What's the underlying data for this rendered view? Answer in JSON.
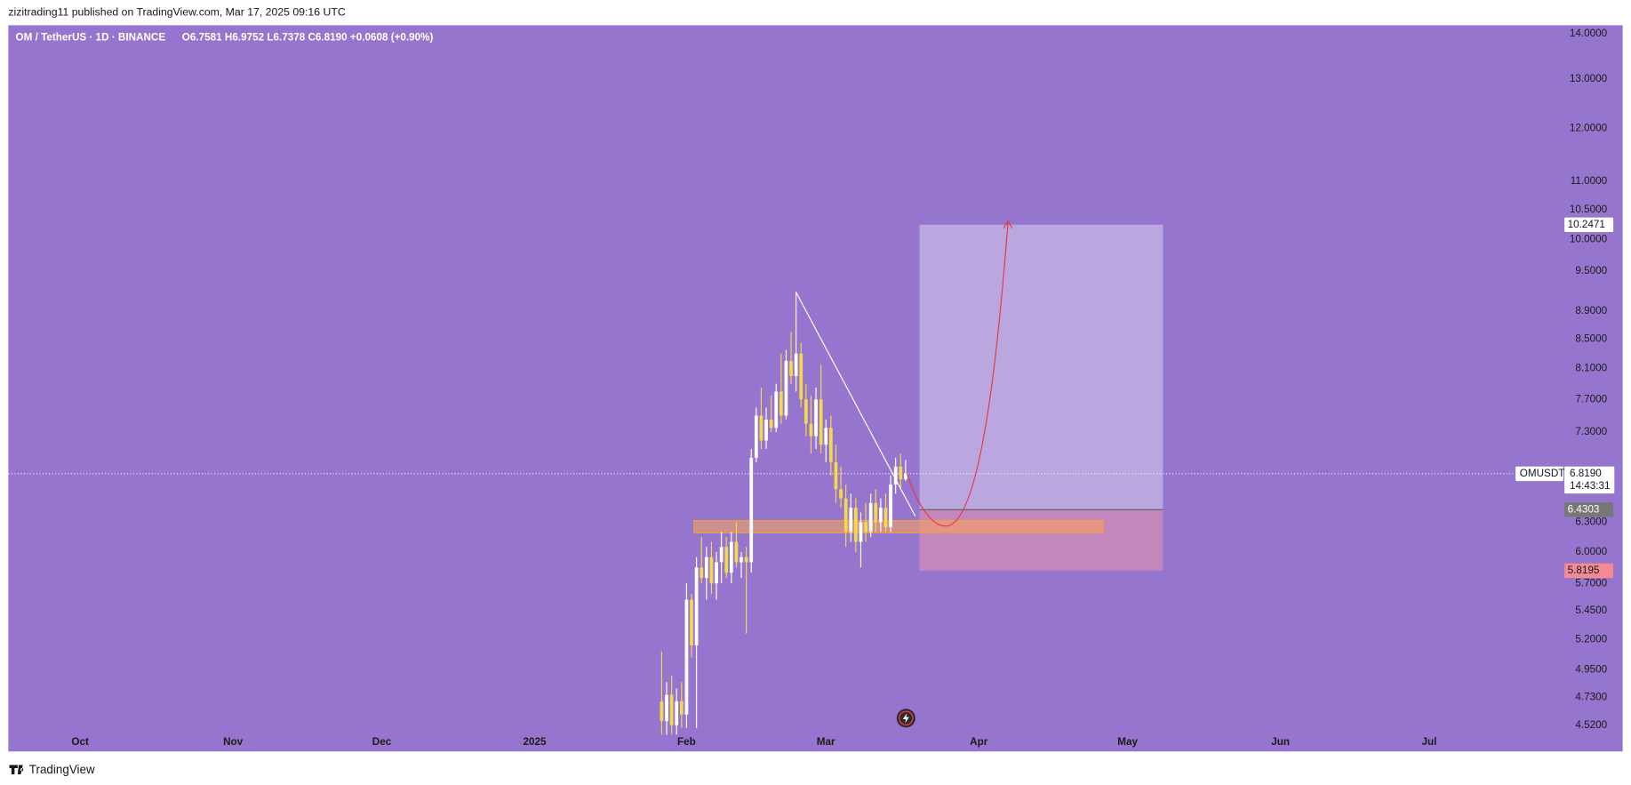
{
  "header": {
    "publisher": "zizitrading11 published on TradingView.com, Mar 17, 2025 09:16 UTC",
    "symbol": "OM / TetherUS · 1D · BINANCE",
    "ohlc": "O6.7581  H6.9752  L6.7378  C6.8190  +0.0608 (+0.90%)"
  },
  "footer": {
    "brand": "TradingView"
  },
  "chart_data": {
    "type": "candlestick",
    "log_scale": true,
    "background": "#9575cd",
    "up_color": "#ffffff",
    "down_color": "#f5d94c",
    "categories": [
      null,
      null,
      null,
      null,
      null,
      null,
      null,
      null,
      null,
      null,
      null,
      null,
      null,
      null,
      null,
      null,
      null,
      null,
      null,
      null,
      null,
      null,
      null,
      null,
      null,
      null,
      null,
      null,
      null,
      null,
      null,
      null,
      null,
      null,
      null,
      null,
      null,
      null,
      null,
      null,
      null,
      null,
      null,
      null,
      null,
      null,
      null,
      null,
      null,
      null
    ],
    "open": [
      4.7,
      4.55,
      4.75,
      4.52,
      4.7,
      4.6,
      5.55,
      5.15,
      5.85,
      5.75,
      5.95,
      5.7,
      5.9,
      6.05,
      5.8,
      6.1,
      5.9,
      5.95,
      5.9,
      7.0,
      7.5,
      7.2,
      7.45,
      7.35,
      7.8,
      7.5,
      8.2,
      8.0,
      8.3,
      7.7,
      7.4,
      7.25,
      7.7,
      7.15,
      7.35,
      6.95,
      6.65,
      6.55,
      6.2,
      6.45,
      6.1,
      6.3,
      6.2,
      6.5,
      6.3,
      6.45,
      6.25,
      6.7,
      6.9,
      6.7581
    ],
    "high": [
      5.1,
      4.85,
      4.9,
      4.8,
      4.85,
      5.7,
      5.6,
      5.95,
      6.15,
      6.05,
      6.1,
      6.0,
      6.2,
      6.15,
      6.2,
      6.3,
      6.0,
      6.05,
      7.1,
      7.6,
      7.85,
      7.6,
      7.75,
      7.9,
      8.3,
      8.35,
      8.6,
      9.16,
      8.45,
      7.9,
      7.75,
      7.85,
      8.15,
      7.45,
      7.5,
      7.15,
      6.9,
      6.7,
      6.6,
      6.55,
      6.4,
      6.5,
      6.6,
      6.65,
      6.55,
      6.6,
      6.8,
      7.0,
      7.05,
      6.9752
    ],
    "low": [
      4.45,
      4.45,
      4.45,
      4.45,
      4.5,
      4.5,
      5.05,
      4.5,
      5.7,
      5.55,
      5.6,
      5.55,
      5.7,
      5.75,
      5.7,
      5.85,
      5.75,
      5.25,
      5.8,
      6.95,
      7.1,
      7.1,
      7.3,
      7.3,
      7.4,
      7.45,
      7.9,
      7.8,
      7.6,
      7.25,
      7.05,
      7.1,
      7.05,
      6.95,
      6.8,
      6.5,
      6.45,
      6.05,
      6.1,
      6.0,
      5.85,
      6.1,
      6.15,
      6.2,
      6.2,
      6.2,
      6.2,
      6.6,
      6.65,
      6.7378
    ],
    "close": [
      4.55,
      4.75,
      4.52,
      4.7,
      4.6,
      5.55,
      5.15,
      5.85,
      5.75,
      5.95,
      5.7,
      5.9,
      6.05,
      5.8,
      6.1,
      5.9,
      5.95,
      5.9,
      7.0,
      7.5,
      7.2,
      7.45,
      7.35,
      7.8,
      7.5,
      8.2,
      8.0,
      8.3,
      7.7,
      7.4,
      7.25,
      7.7,
      7.15,
      7.35,
      6.95,
      6.65,
      6.55,
      6.2,
      6.45,
      6.1,
      6.3,
      6.2,
      6.5,
      6.3,
      6.45,
      6.25,
      6.7,
      6.9,
      6.7581,
      6.819
    ],
    "ylim": [
      4.33,
      14.2
    ],
    "yticks": [
      {
        "value": 14,
        "label": "14.0000"
      },
      {
        "value": 13,
        "label": "13.0000"
      },
      {
        "value": 12,
        "label": "12.0000"
      },
      {
        "value": 11,
        "label": "11.0000"
      },
      {
        "value": 10.5,
        "label": "10.5000"
      },
      {
        "value": 10,
        "label": "10.0000"
      },
      {
        "value": 9.5,
        "label": "9.5000"
      },
      {
        "value": 8.9,
        "label": "8.9000"
      },
      {
        "value": 8.5,
        "label": "8.5000"
      },
      {
        "value": 8.1,
        "label": "8.1000"
      },
      {
        "value": 7.7,
        "label": "7.7000"
      },
      {
        "value": 7.3,
        "label": "7.3000"
      },
      {
        "value": 6.3,
        "label": "6.3000"
      },
      {
        "value": 6,
        "label": "6.0000"
      },
      {
        "value": 5.7,
        "label": "5.7000"
      },
      {
        "value": 5.45,
        "label": "5.4500"
      },
      {
        "value": 5.2,
        "label": "5.2000"
      },
      {
        "value": 4.95,
        "label": "4.9500"
      },
      {
        "value": 4.73,
        "label": "4.7300"
      },
      {
        "value": 4.52,
        "label": "4.5200"
      }
    ],
    "xticks": [
      "Oct",
      "Nov",
      "Dec",
      "2025",
      "Feb",
      "Mar",
      "Apr",
      "May",
      "Jun",
      "Jul"
    ],
    "symbol_tag": "OMUSDT",
    "last_price": {
      "value": 6.819,
      "label": "6.8190"
    },
    "countdown": "14:43:31",
    "position": {
      "target": {
        "value": 10.2471,
        "label": "10.2471"
      },
      "entry": {
        "value": 6.4303,
        "label": "6.4303"
      },
      "stop": {
        "value": 5.8195,
        "label": "5.8195"
      }
    }
  }
}
